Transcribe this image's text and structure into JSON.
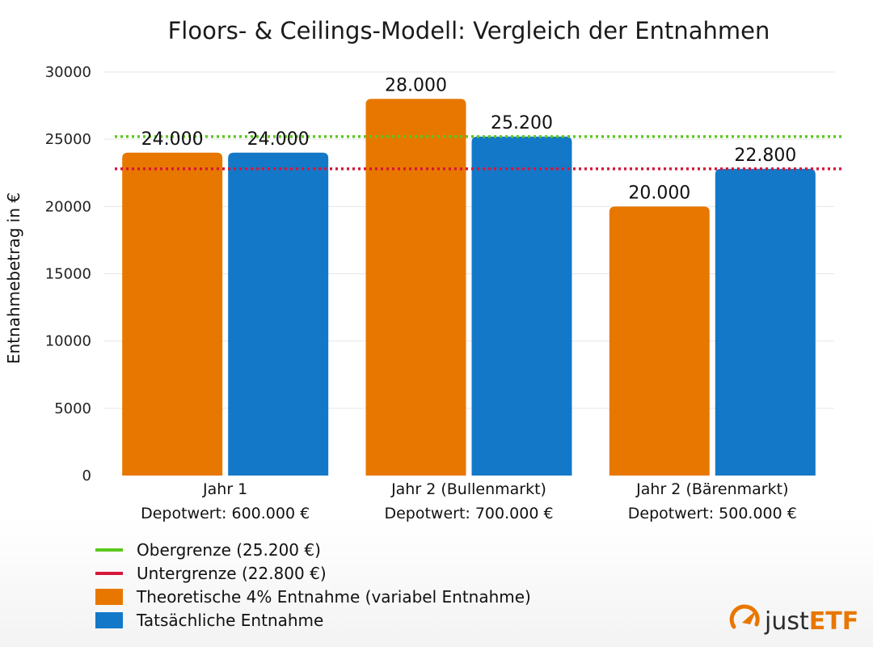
{
  "chart_data": {
    "type": "bar",
    "title": "Floors- & Ceilings-Modell: Vergleich der Entnahmen",
    "xlabel": "",
    "ylabel": "Entnahmebetrag in €",
    "ylim": [
      0,
      30000
    ],
    "yticks": [
      0,
      5000,
      10000,
      15000,
      20000,
      25000,
      30000
    ],
    "grid": true,
    "categories": [
      [
        "Jahr 1",
        "Depotwert: 600.000 €"
      ],
      [
        "Jahr 2 (Bullenmarkt)",
        "Depotwert: 700.000 €"
      ],
      [
        "Jahr 2 (Bärenmarkt)",
        "Depotwert: 500.000 €"
      ]
    ],
    "series": [
      {
        "name": "Theoretische 4% Entnahme (variabel Entnahme)",
        "color": "#e87700",
        "values": [
          24000,
          28000,
          20000
        ],
        "labels": [
          "24.000",
          "28.000",
          "20.000"
        ]
      },
      {
        "name": "Tatsächliche Entnahme",
        "color": "#1478c8",
        "values": [
          24000,
          25200,
          22800
        ],
        "labels": [
          "24.000",
          "25.200",
          "22.800"
        ]
      }
    ],
    "reference_lines": [
      {
        "name": "Obergrenze (25.200 €)",
        "value": 25200,
        "color": "#5cc81e",
        "style": "dotted"
      },
      {
        "name": "Untergrenze (22.800 €)",
        "value": 22800,
        "color": "#d6173a",
        "style": "dotted"
      }
    ],
    "legend_placement": "bottom-left"
  },
  "brand": {
    "logo_light": "just",
    "logo_bold": "ETF",
    "icon": "gauge-arrow-icon"
  }
}
